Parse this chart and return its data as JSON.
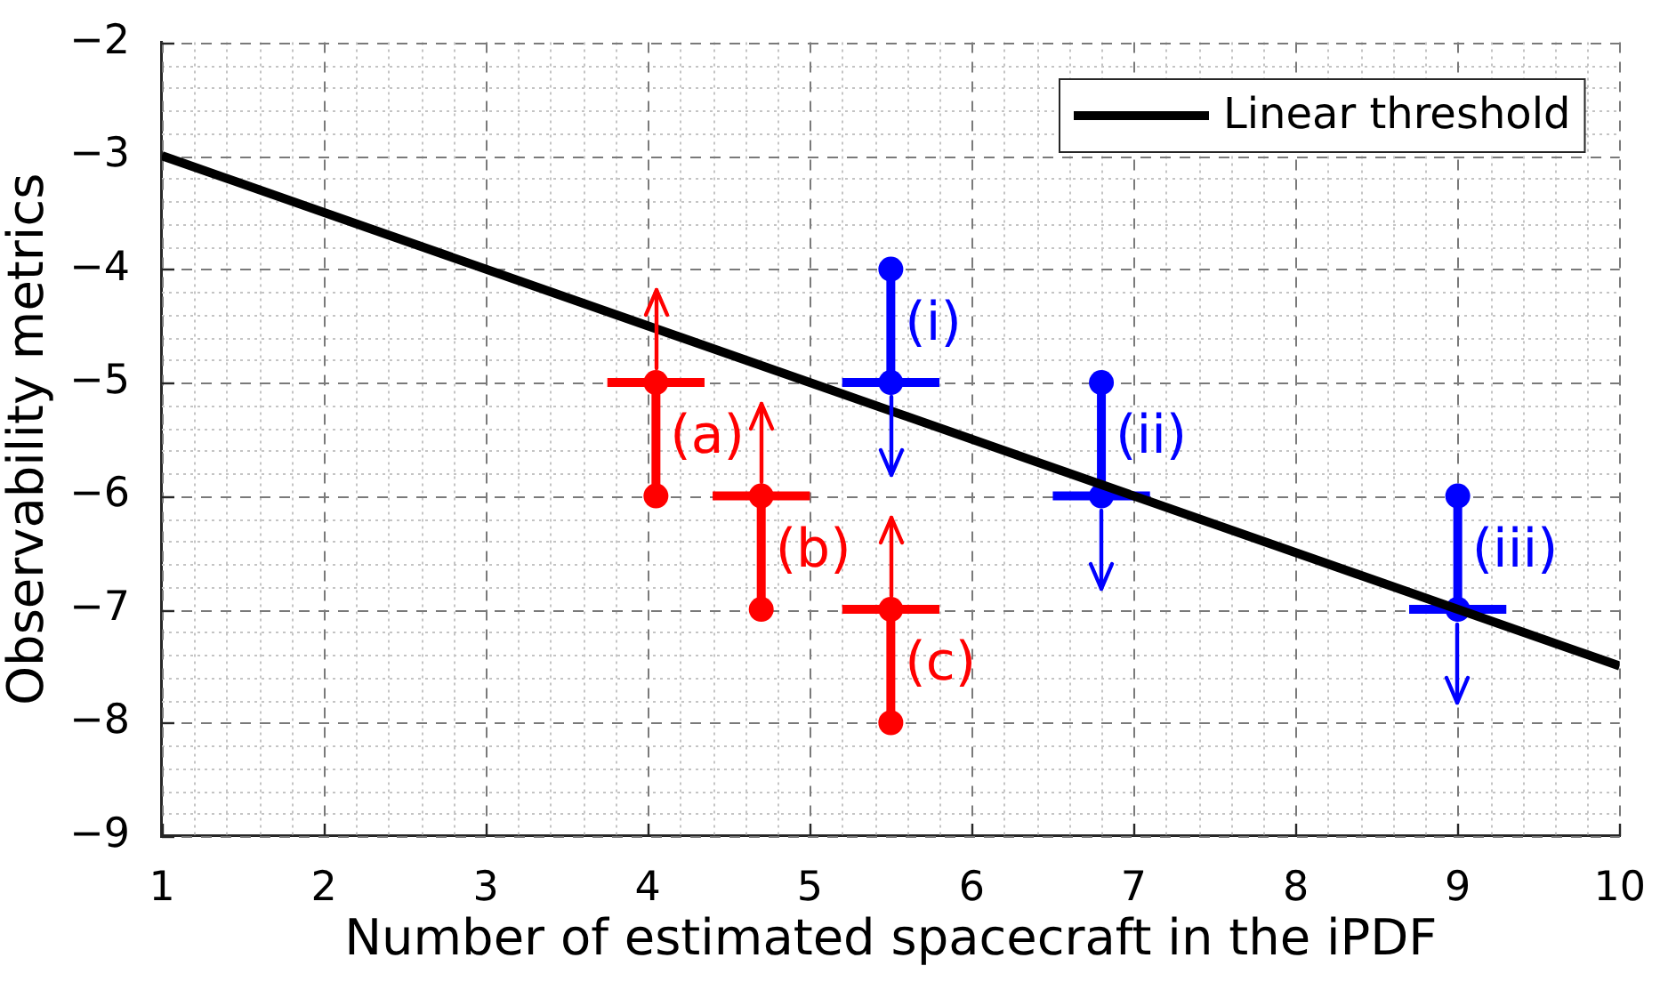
{
  "chart_data": {
    "type": "line",
    "xlabel": "Number of estimated spacecraft in the iPDF",
    "ylabel": "Observability metrics",
    "xlim": [
      1,
      10
    ],
    "ylim": [
      -9,
      -2
    ],
    "xticks": [
      1,
      {
        "value": 1.2,
        "label": null
      },
      {
        "value": 1.4,
        "label": null
      },
      {
        "value": 1.6,
        "label": null
      },
      {
        "value": 1.8,
        "label": null
      },
      2,
      {
        "value": 2.2,
        "label": null
      },
      {
        "value": 2.4,
        "label": null
      },
      {
        "value": 2.6,
        "label": null
      },
      {
        "value": 2.8,
        "label": null
      },
      3,
      {
        "value": 3.2,
        "label": null
      },
      {
        "value": 3.4,
        "label": null
      },
      {
        "value": 3.6,
        "label": null
      },
      {
        "value": 3.8,
        "label": null
      },
      4,
      {
        "value": 4.2,
        "label": null
      },
      {
        "value": 4.4,
        "label": null
      },
      {
        "value": 4.6,
        "label": null
      },
      {
        "value": 4.8,
        "label": null
      },
      5,
      {
        "value": 5.2,
        "label": null
      },
      {
        "value": 5.4,
        "label": null
      },
      {
        "value": 5.6,
        "label": null
      },
      {
        "value": 5.8,
        "label": null
      },
      6,
      {
        "value": 6.2,
        "label": null
      },
      {
        "value": 6.4,
        "label": null
      },
      {
        "value": 6.6,
        "label": null
      },
      {
        "value": 6.8,
        "label": null
      },
      7,
      {
        "value": 7.2,
        "label": null
      },
      {
        "value": 7.4,
        "label": null
      },
      {
        "value": 7.6,
        "label": null
      },
      {
        "value": 7.8,
        "label": null
      },
      8,
      {
        "value": 8.2,
        "label": null
      },
      {
        "value": 8.4,
        "label": null
      },
      {
        "value": 8.6,
        "label": null
      },
      {
        "value": 8.8,
        "label": null
      },
      9,
      {
        "value": 9.2,
        "label": null
      },
      {
        "value": 9.4,
        "label": null
      },
      {
        "value": 9.6,
        "label": null
      },
      {
        "value": 9.8,
        "label": null
      },
      10
    ],
    "yticks": [
      -9,
      {
        "value": -8.8,
        "label": null
      },
      {
        "value": -8.6,
        "label": null
      },
      {
        "value": -8.4,
        "label": null
      },
      {
        "value": -8.2,
        "label": null
      },
      -8,
      {
        "value": -7.8,
        "label": null
      },
      {
        "value": -7.6,
        "label": null
      },
      {
        "value": -7.4,
        "label": null
      },
      {
        "value": -7.2,
        "label": null
      },
      -7,
      {
        "value": -6.8,
        "label": null
      },
      {
        "value": -6.6,
        "label": null
      },
      {
        "value": -6.4,
        "label": null
      },
      {
        "value": -6.2,
        "label": null
      },
      -6,
      {
        "value": -5.8,
        "label": null
      },
      {
        "value": -5.6,
        "label": null
      },
      {
        "value": -5.4,
        "label": null
      },
      {
        "value": -5.2,
        "label": null
      },
      -5,
      {
        "value": -4.8,
        "label": null
      },
      {
        "value": -4.6,
        "label": null
      },
      {
        "value": -4.4,
        "label": null
      },
      {
        "value": -4.2,
        "label": null
      },
      -4,
      {
        "value": -3.8,
        "label": null
      },
      {
        "value": -3.6,
        "label": null
      },
      {
        "value": -3.4,
        "label": null
      },
      {
        "value": -3.2,
        "label": null
      },
      -3,
      {
        "value": -2.8,
        "label": null
      },
      {
        "value": -2.6,
        "label": null
      },
      {
        "value": -2.4,
        "label": null
      },
      {
        "value": -2.2,
        "label": null
      },
      -2
    ],
    "grid": true,
    "legend": "top right",
    "marker": "circle",
    "series": [
      {
        "name": "Linear threshold",
        "color": "#000000",
        "marker": "none",
        "x": [
          1,
          10
        ],
        "values": [
          -3,
          -7.5
        ]
      },
      {
        "color": "#ff0000",
        "x": [
          4.05,
          4.05
        ],
        "values": [
          -5,
          -6
        ],
        "xerrors": [
          0.3,
          null
        ]
      },
      {
        "color": "#ff0000",
        "x": [
          4.7,
          4.7
        ],
        "values": [
          -6,
          -7
        ],
        "xerrors": [
          0.3,
          null
        ]
      },
      {
        "color": "#ff0000",
        "x": [
          5.5,
          5.5
        ],
        "values": [
          -7,
          -8
        ],
        "xerrors": [
          0.3,
          null
        ]
      },
      {
        "color": "#0000ff",
        "x": [
          5.5,
          5.5
        ],
        "values": [
          -5,
          -4
        ],
        "xerrors": [
          0.3,
          null
        ]
      },
      {
        "color": "#0000ff",
        "x": [
          6.8,
          6.8
        ],
        "values": [
          -6,
          -5
        ],
        "xerrors": [
          0.3,
          null
        ]
      },
      {
        "color": "#0000ff",
        "x": [
          9,
          9
        ],
        "values": [
          -7,
          -6
        ],
        "xerrors": [
          0.3,
          null
        ]
      }
    ],
    "annotations": [
      {
        "text": "(a)",
        "x": 4.05,
        "y": -5
      },
      {
        "text": "(b)",
        "x": 4.7,
        "y": -6
      },
      {
        "text": "(c)",
        "x": 5.5,
        "y": -7
      },
      {
        "text": "(i)",
        "x": 5.5,
        "y": -5
      },
      {
        "text": "(ii)",
        "x": 6.8,
        "y": -6
      },
      {
        "text": "(iii)",
        "x": 9,
        "y": -7
      }
    ]
  }
}
